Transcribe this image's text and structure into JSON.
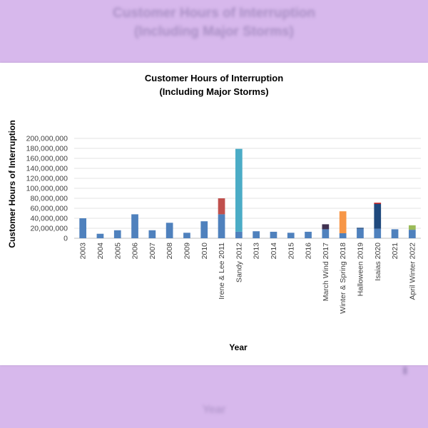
{
  "chart_data": {
    "type": "bar",
    "title": "Customer Hours of Interruption",
    "subtitle": "(Including Major Storms)",
    "xlabel": "Year",
    "ylabel": "Customer Hours of Interruption",
    "ylim": [
      0,
      200000000
    ],
    "y_ticks": [
      "0",
      "20,000,000",
      "40,000,000",
      "60,000,000",
      "80,000,000",
      "100,000,000",
      "120,000,000",
      "140,000,000",
      "160,000,000",
      "180,000,000",
      "200,000,000"
    ],
    "grid": true,
    "stacked": true,
    "categories": [
      "2003",
      "2004",
      "2005",
      "2006",
      "2007",
      "2008",
      "2009",
      "2010",
      "Irene & Lee 2011",
      "Sandy 2012",
      "2013",
      "2014",
      "2015",
      "2016",
      "March Wind 2017",
      "Winter & Spring  2018",
      "Halloween 2019",
      "Isaias 2020",
      "2021",
      "April Winter 2022"
    ],
    "series": [
      {
        "color": "#4f81bd",
        "values": [
          40000000,
          9000000,
          16000000,
          48000000,
          16000000,
          31000000,
          11000000,
          34000000,
          48000000,
          13000000,
          14000000,
          13000000,
          11000000,
          13000000,
          18000000,
          10000000,
          19000000,
          19000000,
          18000000,
          17000000
        ]
      },
      {
        "color": "#c0504d",
        "values": [
          0,
          0,
          0,
          0,
          0,
          0,
          0,
          0,
          32000000,
          0,
          0,
          0,
          0,
          0,
          0,
          0,
          0,
          0,
          0,
          0
        ]
      },
      {
        "color": "#4bacc6",
        "values": [
          0,
          0,
          0,
          0,
          0,
          0,
          0,
          0,
          0,
          166000000,
          0,
          0,
          0,
          0,
          0,
          0,
          0,
          0,
          0,
          0
        ]
      },
      {
        "color": "#403151",
        "values": [
          0,
          0,
          0,
          0,
          0,
          0,
          0,
          0,
          0,
          0,
          0,
          0,
          0,
          0,
          10000000,
          0,
          0,
          0,
          0,
          0
        ]
      },
      {
        "color": "#f79646",
        "values": [
          0,
          0,
          0,
          0,
          0,
          0,
          0,
          0,
          0,
          0,
          0,
          0,
          0,
          0,
          0,
          44000000,
          0,
          0,
          0,
          0
        ]
      },
      {
        "color": "#1f497d",
        "values": [
          0,
          0,
          0,
          0,
          0,
          0,
          0,
          0,
          0,
          0,
          0,
          0,
          0,
          0,
          0,
          0,
          2000000,
          50000000,
          0,
          0
        ]
      },
      {
        "color": "#c00000",
        "values": [
          0,
          0,
          0,
          0,
          0,
          0,
          0,
          0,
          0,
          0,
          0,
          0,
          0,
          0,
          0,
          0,
          0,
          2000000,
          0,
          0
        ]
      },
      {
        "color": "#9bbb59",
        "values": [
          0,
          0,
          0,
          0,
          0,
          0,
          0,
          0,
          0,
          0,
          0,
          0,
          0,
          0,
          0,
          0,
          0,
          0,
          0,
          9000000
        ]
      }
    ]
  }
}
